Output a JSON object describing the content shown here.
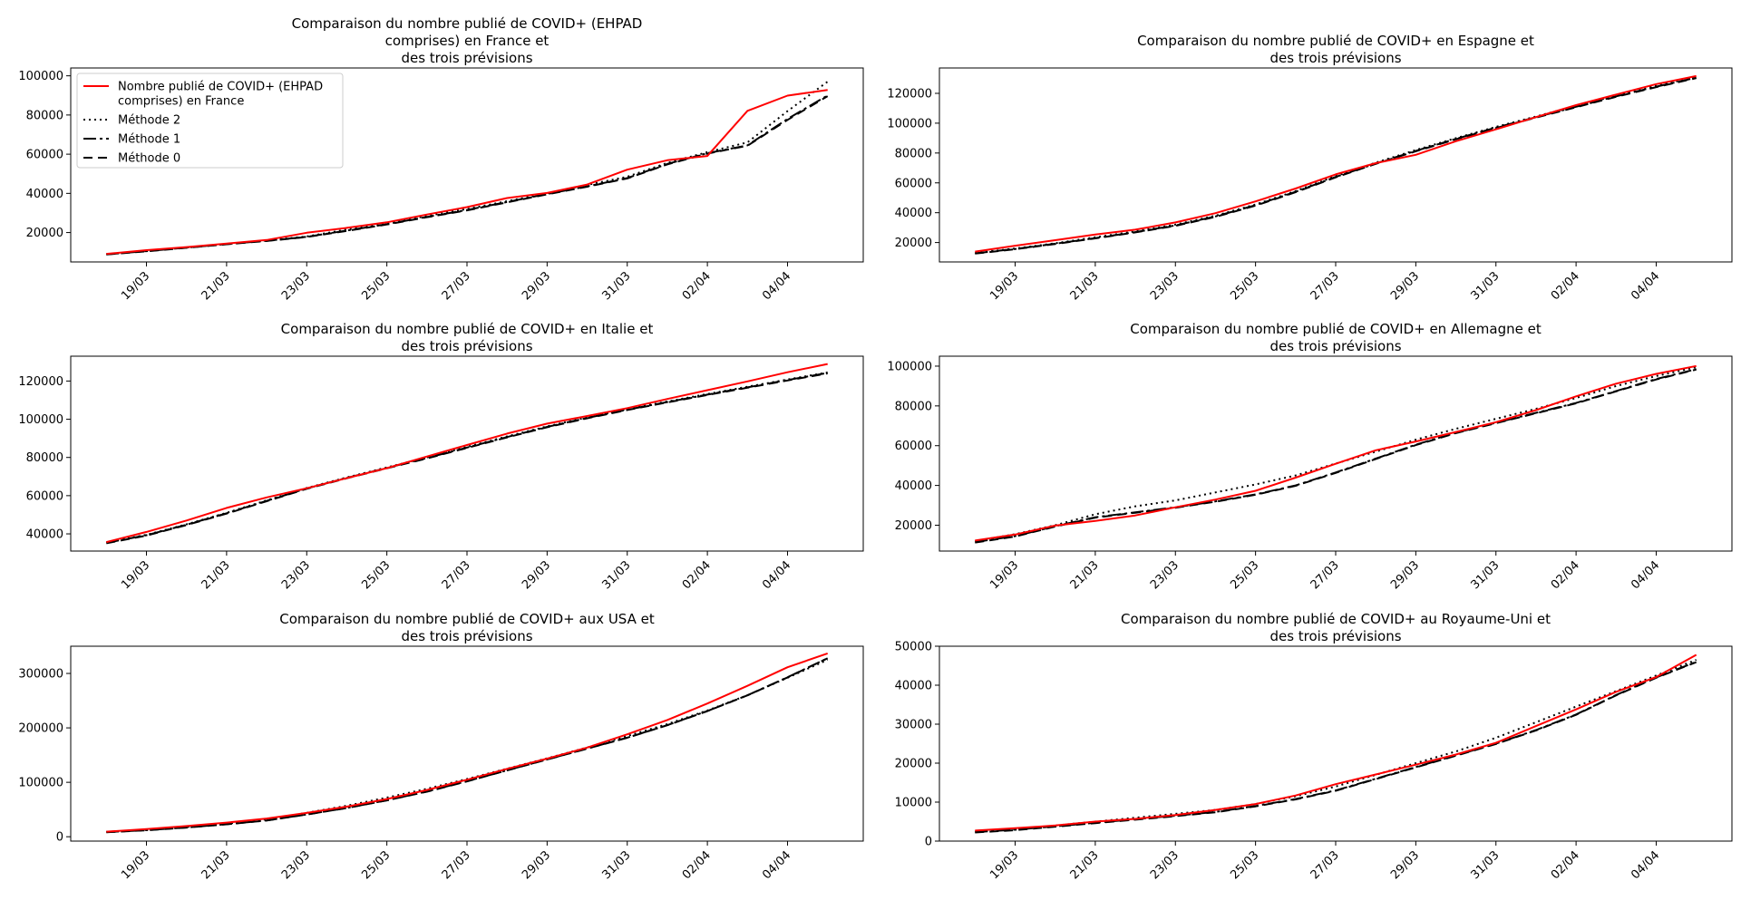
{
  "figure": {
    "styles": {
      "published": {
        "color": "#ff0000",
        "dash": ""
      },
      "m2": {
        "color": "#000000",
        "dash": "2,4"
      },
      "m1": {
        "color": "#000000",
        "dash": "14,4,3,4"
      },
      "m0": {
        "color": "#000000",
        "dash": "10,6"
      }
    }
  },
  "chart_data": [
    {
      "type": "line",
      "title": "Comparaison du nombre publié de COVID+ (EHPAD\ncomprises) en France et\ndes trois prévisions",
      "x": [
        "18/03",
        "19/03",
        "20/03",
        "21/03",
        "22/03",
        "23/03",
        "24/03",
        "25/03",
        "26/03",
        "27/03",
        "28/03",
        "29/03",
        "30/03",
        "31/03",
        "01/04",
        "02/04",
        "03/04",
        "04/04",
        "05/04"
      ],
      "xticks": [
        "19/03",
        "21/03",
        "23/03",
        "25/03",
        "27/03",
        "29/03",
        "31/03",
        "02/04",
        "04/04"
      ],
      "ylim": [
        5000,
        104000
      ],
      "yticks": [
        20000,
        40000,
        60000,
        80000,
        100000
      ],
      "legend": {
        "position": "upper-left",
        "order": [
          "published",
          "m2",
          "m1",
          "m0"
        ]
      },
      "series": [
        {
          "key": "published",
          "name": "Nombre publié de COVID+ (EHPAD\ncomprises) en France",
          "values": [
            9134,
            11000,
            12600,
            14400,
            16200,
            19900,
            22400,
            25200,
            29200,
            33000,
            37600,
            40200,
            44500,
            52100,
            56900,
            59100,
            82100,
            89900,
            92800
          ]
        },
        {
          "key": "m2",
          "name": "Méthode 2",
          "values": [
            9000,
            10600,
            12400,
            14200,
            16000,
            18000,
            21500,
            24700,
            28500,
            32000,
            36000,
            40000,
            44300,
            48500,
            55500,
            61000,
            66000,
            82000,
            97000
          ]
        },
        {
          "key": "m1",
          "name": "Méthode 1",
          "values": [
            8900,
            10500,
            12300,
            14100,
            15800,
            17800,
            21000,
            24300,
            28000,
            31500,
            35600,
            39700,
            43600,
            47800,
            55000,
            60500,
            64500,
            78000,
            90000
          ]
        },
        {
          "key": "m0",
          "name": "Méthode 0",
          "values": [
            8800,
            10400,
            12200,
            14000,
            15700,
            17700,
            20800,
            24100,
            27800,
            31300,
            35400,
            39500,
            43400,
            47600,
            54800,
            60300,
            64300,
            77500,
            89600
          ]
        }
      ]
    },
    {
      "type": "line",
      "title": "Comparaison du nombre publié de COVID+  en Espagne et\ndes trois prévisions",
      "x": [
        "18/03",
        "19/03",
        "20/03",
        "21/03",
        "22/03",
        "23/03",
        "24/03",
        "25/03",
        "26/03",
        "27/03",
        "28/03",
        "29/03",
        "30/03",
        "31/03",
        "01/04",
        "02/04",
        "03/04",
        "04/04",
        "05/04"
      ],
      "xticks": [
        "19/03",
        "21/03",
        "23/03",
        "25/03",
        "27/03",
        "29/03",
        "31/03",
        "02/04",
        "04/04"
      ],
      "ylim": [
        7000,
        137000
      ],
      "yticks": [
        20000,
        40000,
        60000,
        80000,
        100000,
        120000
      ],
      "series": [
        {
          "key": "published",
          "values": [
            13900,
            17900,
            21600,
            25400,
            28600,
            33500,
            39700,
            47600,
            56200,
            65700,
            73200,
            78800,
            87900,
            95900,
            104100,
            112100,
            119200,
            126200,
            131600
          ]
        },
        {
          "key": "m2",
          "values": [
            13000,
            16000,
            19500,
            23500,
            27500,
            32000,
            38000,
            45500,
            54500,
            64500,
            73500,
            82000,
            90000,
            97500,
            104500,
            111500,
            118500,
            125000,
            131000
          ]
        },
        {
          "key": "m1",
          "values": [
            12800,
            15700,
            19200,
            23000,
            27000,
            31500,
            37500,
            45000,
            54000,
            64000,
            73000,
            81500,
            89500,
            97000,
            104000,
            111000,
            118000,
            124500,
            130500
          ]
        },
        {
          "key": "m0",
          "values": [
            12600,
            15500,
            19000,
            22800,
            26800,
            31200,
            37200,
            44700,
            53700,
            63700,
            72700,
            81200,
            89200,
            96700,
            103700,
            110700,
            117700,
            124200,
            130200
          ]
        }
      ]
    },
    {
      "type": "line",
      "title": "Comparaison du nombre publié de COVID+ en Italie et\ndes trois prévisions",
      "x": [
        "18/03",
        "19/03",
        "20/03",
        "21/03",
        "22/03",
        "23/03",
        "24/03",
        "25/03",
        "26/03",
        "27/03",
        "28/03",
        "29/03",
        "30/03",
        "31/03",
        "01/04",
        "02/04",
        "03/04",
        "04/04",
        "05/04"
      ],
      "xticks": [
        "19/03",
        "21/03",
        "23/03",
        "25/03",
        "27/03",
        "29/03",
        "31/03",
        "02/04",
        "04/04"
      ],
      "ylim": [
        31000,
        133000
      ],
      "yticks": [
        40000,
        60000,
        80000,
        100000,
        120000
      ],
      "series": [
        {
          "key": "published",
          "values": [
            35700,
            41000,
            47000,
            53600,
            59100,
            63900,
            69200,
            74400,
            80500,
            86500,
            92500,
            97700,
            101700,
            105800,
            110600,
            115200,
            119800,
            124600,
            128900
          ]
        },
        {
          "key": "m2",
          "values": [
            35500,
            39500,
            45000,
            51000,
            57500,
            64000,
            69500,
            74800,
            80000,
            85500,
            91000,
            96300,
            101000,
            105300,
            109300,
            113200,
            117000,
            120800,
            124500
          ]
        },
        {
          "key": "m1",
          "values": [
            35300,
            39300,
            44800,
            50800,
            57300,
            63800,
            69300,
            74500,
            79700,
            85200,
            90700,
            96000,
            100700,
            105000,
            109000,
            112900,
            116700,
            120500,
            124200
          ]
        },
        {
          "key": "m0",
          "values": [
            35100,
            39100,
            44600,
            50600,
            57100,
            63600,
            69100,
            74300,
            79500,
            85000,
            90500,
            95800,
            100500,
            104800,
            108800,
            112700,
            116500,
            120300,
            124000
          ]
        }
      ]
    },
    {
      "type": "line",
      "title": "Comparaison du nombre publié de COVID+ en Allemagne et\ndes trois prévisions",
      "x": [
        "18/03",
        "19/03",
        "20/03",
        "21/03",
        "22/03",
        "23/03",
        "24/03",
        "25/03",
        "26/03",
        "27/03",
        "28/03",
        "29/03",
        "30/03",
        "31/03",
        "01/04",
        "02/04",
        "03/04",
        "04/04",
        "05/04"
      ],
      "xticks": [
        "19/03",
        "21/03",
        "23/03",
        "25/03",
        "27/03",
        "29/03",
        "31/03",
        "02/04",
        "04/04"
      ],
      "ylim": [
        7000,
        105000
      ],
      "yticks": [
        20000,
        40000,
        60000,
        80000,
        100000
      ],
      "series": [
        {
          "key": "published",
          "values": [
            12300,
            15300,
            19800,
            22200,
            24900,
            29000,
            32900,
            37300,
            43900,
            50900,
            57700,
            62100,
            66900,
            71800,
            77900,
            84800,
            91200,
            96100,
            100100
          ]
        },
        {
          "key": "m2",
          "values": [
            12000,
            15500,
            20000,
            25500,
            29500,
            32500,
            36500,
            40500,
            45000,
            51000,
            57000,
            63000,
            68500,
            73500,
            78500,
            84000,
            90000,
            95000,
            99500
          ]
        },
        {
          "key": "m1",
          "values": [
            11500,
            14500,
            19500,
            24000,
            26500,
            29000,
            32000,
            35500,
            40000,
            46500,
            53500,
            60500,
            66500,
            71500,
            76500,
            81500,
            87500,
            93500,
            98500
          ]
        },
        {
          "key": "m0",
          "values": [
            11300,
            14300,
            19300,
            23800,
            26300,
            28800,
            31800,
            35300,
            39800,
            46300,
            53300,
            60300,
            66300,
            71300,
            76300,
            81300,
            87300,
            93300,
            98300
          ]
        }
      ]
    },
    {
      "type": "line",
      "title": "Comparaison du nombre publié de COVID+ aux USA et\ndes trois prévisions",
      "x": [
        "18/03",
        "19/03",
        "20/03",
        "21/03",
        "22/03",
        "23/03",
        "24/03",
        "25/03",
        "26/03",
        "27/03",
        "28/03",
        "29/03",
        "30/03",
        "31/03",
        "01/04",
        "02/04",
        "03/04",
        "04/04",
        "05/04"
      ],
      "xticks": [
        "19/03",
        "21/03",
        "23/03",
        "25/03",
        "27/03",
        "29/03",
        "31/03",
        "02/04",
        "04/04"
      ],
      "ylim": [
        -8000,
        350000
      ],
      "yticks": [
        0,
        100000,
        200000,
        300000
      ],
      "series": [
        {
          "key": "published",
          "values": [
            9400,
            14000,
            19600,
            26000,
            33500,
            43800,
            55200,
            69200,
            85900,
            104700,
            124700,
            143500,
            163800,
            188200,
            214400,
            244700,
            277300,
            311400,
            336800
          ]
        },
        {
          "key": "m2",
          "values": [
            9000,
            13000,
            18000,
            24000,
            32000,
            44000,
            57000,
            72000,
            88000,
            106000,
            125000,
            144000,
            164000,
            185000,
            207000,
            232000,
            260000,
            292000,
            325000
          ]
        },
        {
          "key": "m1",
          "values": [
            8500,
            12000,
            17000,
            23000,
            30000,
            41000,
            53000,
            67000,
            83000,
            102000,
            122000,
            142000,
            162000,
            182000,
            205000,
            231000,
            260000,
            293000,
            328000
          ]
        },
        {
          "key": "m0",
          "values": [
            8300,
            11800,
            16800,
            22800,
            29800,
            40800,
            52800,
            66800,
            82800,
            101800,
            121800,
            141800,
            161800,
            181800,
            204800,
            230800,
            259800,
            292800,
            327800
          ]
        }
      ]
    },
    {
      "type": "line",
      "title": "Comparaison du nombre publié de COVID+ au Royaume-Uni et\ndes trois prévisions",
      "x": [
        "18/03",
        "19/03",
        "20/03",
        "21/03",
        "22/03",
        "23/03",
        "24/03",
        "25/03",
        "26/03",
        "27/03",
        "28/03",
        "29/03",
        "30/03",
        "31/03",
        "01/04",
        "02/04",
        "03/04",
        "04/04",
        "05/04"
      ],
      "xticks": [
        "19/03",
        "21/03",
        "23/03",
        "25/03",
        "27/03",
        "29/03",
        "31/03",
        "02/04",
        "04/04"
      ],
      "ylim": [
        0,
        50000
      ],
      "yticks": [
        0,
        10000,
        20000,
        30000,
        40000,
        50000
      ],
      "series": [
        {
          "key": "published",
          "values": [
            2700,
            3300,
            4000,
            5000,
            5700,
            6700,
            8000,
            9500,
            11700,
            14600,
            17100,
            19600,
            22200,
            25200,
            29500,
            33800,
            38300,
            42100,
            47800
          ]
        },
        {
          "key": "m2",
          "values": [
            2500,
            3100,
            4000,
            5000,
            6000,
            7000,
            8000,
            9500,
            11500,
            14000,
            17000,
            20000,
            23000,
            26500,
            30500,
            34500,
            38500,
            42500,
            46500
          ]
        },
        {
          "key": "m1",
          "values": [
            2300,
            2900,
            3800,
            4700,
            5600,
            6500,
            7500,
            9000,
            10800,
            13000,
            16000,
            19000,
            22000,
            25000,
            28500,
            32500,
            37500,
            42000,
            46000
          ]
        },
        {
          "key": "m0",
          "values": [
            2200,
            2800,
            3700,
            4600,
            5500,
            6400,
            7400,
            8900,
            10700,
            12900,
            15900,
            18900,
            21900,
            24900,
            28400,
            32400,
            37400,
            41900,
            45900
          ]
        }
      ]
    }
  ]
}
